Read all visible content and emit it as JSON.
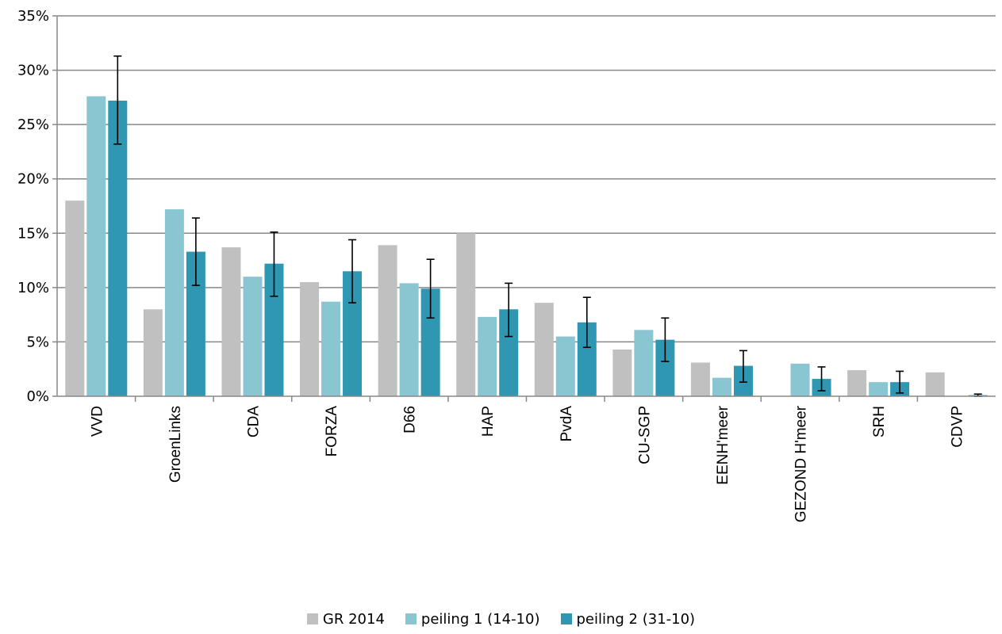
{
  "chart_data": {
    "type": "bar",
    "title": "",
    "xlabel": "",
    "ylabel": "",
    "ylim": [
      0,
      35
    ],
    "y_ticks": [
      "0%",
      "5%",
      "10%",
      "15%",
      "20%",
      "25%",
      "30%",
      "35%"
    ],
    "grid": true,
    "legend_position": "bottom",
    "categories": [
      "VVD",
      "GroenLinks",
      "CDA",
      "FORZA",
      "D66",
      "HAP",
      "PvdA",
      "CU-SGP",
      "EENH'meer",
      "GEZOND H'meer",
      "SRH",
      "CDVP"
    ],
    "series": [
      {
        "name": "GR 2014",
        "color": "#c0c0c0",
        "values": [
          18.0,
          8.0,
          13.7,
          10.5,
          13.9,
          15.0,
          8.6,
          4.3,
          3.1,
          null,
          2.4,
          2.2
        ]
      },
      {
        "name": "peiling 1 (14-10)",
        "color": "#8ac5d2",
        "values": [
          27.6,
          17.2,
          11.0,
          8.7,
          10.4,
          7.3,
          5.5,
          6.1,
          1.7,
          3.0,
          1.3,
          null
        ]
      },
      {
        "name": "peiling 2 (31-10)",
        "color": "#2f97b2",
        "values": [
          27.2,
          13.3,
          12.2,
          11.5,
          9.9,
          8.0,
          6.8,
          5.2,
          2.8,
          1.6,
          1.3,
          0.1
        ],
        "error_low": [
          23.2,
          10.2,
          9.2,
          8.6,
          7.2,
          5.5,
          4.5,
          3.2,
          1.3,
          0.5,
          0.3,
          0.0
        ],
        "error_high": [
          31.3,
          16.4,
          15.1,
          14.4,
          12.6,
          10.4,
          9.1,
          7.2,
          4.2,
          2.7,
          2.3,
          0.2
        ]
      }
    ]
  }
}
